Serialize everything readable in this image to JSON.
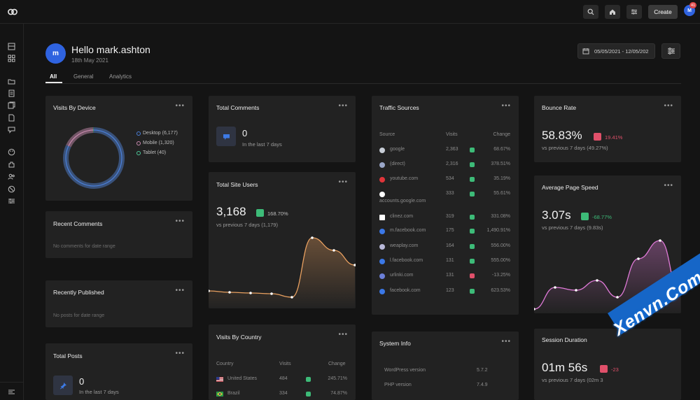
{
  "topbar": {
    "create_label": "Create",
    "avatar_initial": "M",
    "notification_count": "41"
  },
  "header": {
    "avatar_initial": "m",
    "greeting": "Hello mark.ashton",
    "date": "18th May 2021",
    "date_range": "05/05/2021 - 12/05/202"
  },
  "tabs": [
    {
      "label": "All"
    },
    {
      "label": "General"
    },
    {
      "label": "Analytics"
    }
  ],
  "card_menu": "•••",
  "visits_by_device": {
    "title": "Visits By Device",
    "legend": [
      {
        "label": "Desktop (6,177)",
        "color": "#4a7fd8",
        "value": 6177
      },
      {
        "label": "Mobile (1,320)",
        "color": "#c98ab0",
        "value": 1320
      },
      {
        "label": "Tablet (40)",
        "color": "#4cc89a",
        "value": 40
      }
    ]
  },
  "recent_comments": {
    "title": "Recent Comments",
    "empty": "No comments for date range"
  },
  "recently_published": {
    "title": "Recently Published",
    "empty": "No posts for date range"
  },
  "total_posts": {
    "title": "Total Posts",
    "value": "0",
    "sub": "In the last 7 days"
  },
  "total_comments": {
    "title": "Total Comments",
    "value": "0",
    "sub": "In the last 7 days"
  },
  "total_site_users": {
    "title": "Total Site Users",
    "value": "3,168",
    "change": "168.70%",
    "sub": "vs previous 7 days (1,179)",
    "line_color": "#e8a060"
  },
  "visits_by_country": {
    "title": "Visits By Country",
    "columns": {
      "country": "Country",
      "visits": "Visits",
      "change": "Change"
    },
    "rows": [
      {
        "country": "United States",
        "visits": "484",
        "change": "245.71%"
      },
      {
        "country": "Brazil",
        "visits": "334",
        "change": "74.87%"
      }
    ]
  },
  "traffic_sources": {
    "title": "Traffic Sources",
    "columns": {
      "source": "Source",
      "visits": "Visits",
      "change": "Change"
    },
    "rows": [
      {
        "source": "google",
        "visits": "2,363",
        "change": "68.67%",
        "up": true
      },
      {
        "source": "(direct)",
        "visits": "2,316",
        "change": "378.51%",
        "up": true
      },
      {
        "source": "youtube.com",
        "visits": "534",
        "change": "35.19%",
        "up": true
      },
      {
        "source": "accounts.google.com",
        "visits": "333",
        "change": "55.61%",
        "up": true
      },
      {
        "source": "clinez.com",
        "visits": "319",
        "change": "331.08%",
        "up": true
      },
      {
        "source": "m.facebook.com",
        "visits": "175",
        "change": "1,490.91%",
        "up": true
      },
      {
        "source": "weaplay.com",
        "visits": "164",
        "change": "556.00%",
        "up": true
      },
      {
        "source": "l.facebook.com",
        "visits": "131",
        "change": "555.00%",
        "up": true
      },
      {
        "source": "urlinki.com",
        "visits": "131",
        "change": "-13.25%",
        "up": false
      },
      {
        "source": "facebook.com",
        "visits": "123",
        "change": "623.53%",
        "up": true
      }
    ]
  },
  "system_info": {
    "title": "System Info",
    "rows": [
      {
        "label": "WordPress version",
        "value": "5.7.2"
      },
      {
        "label": "PHP version",
        "value": "7.4.9"
      }
    ]
  },
  "bounce_rate": {
    "title": "Bounce Rate",
    "value": "58.83%",
    "change": "19.41%",
    "sub": "vs previous 7 days (49.27%)"
  },
  "avg_page_speed": {
    "title": "Average Page Speed",
    "value": "3.07s",
    "change": "-68.77%",
    "sub": "vs previous 7 days (9.83s)",
    "line_color": "#e07ad8"
  },
  "session_duration": {
    "title": "Session Duration",
    "value": "01m 56s",
    "change": "-23",
    "sub": "vs previous 7 days (02m 3"
  },
  "watermark": "Xenvn.Com",
  "colors": {
    "accent": "#2f63e0",
    "up": "#3dbb78",
    "down": "#e0506a",
    "card": "#222222",
    "bg": "#141414"
  }
}
